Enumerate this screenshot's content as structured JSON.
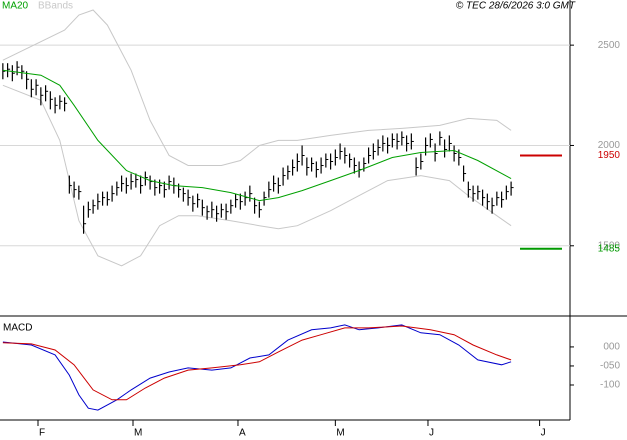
{
  "chart_data": [
    {
      "type": "ohlc",
      "copyright": "© TEC 28/6/2026 3:0 GMT",
      "xlim": [
        -0.6,
        119.4
      ],
      "ylim": [
        1155,
        2725
      ],
      "yticks": [
        1500,
        2000,
        2500
      ],
      "grid": true,
      "bar_color": "#000000",
      "high": [
        2410,
        2410,
        2400,
        2420,
        2400,
        2370,
        2330,
        2330,
        2290,
        2300,
        2270,
        2240,
        2250,
        2240,
        1850,
        1820,
        1800,
        1700,
        1720,
        1730,
        1760,
        1770,
        1770,
        1800,
        1820,
        1850,
        1840,
        1860,
        1860,
        1850,
        1870,
        1850,
        1830,
        1830,
        1820,
        1850,
        1840,
        1810,
        1790,
        1780,
        1750,
        1760,
        1730,
        1700,
        1720,
        1700,
        1710,
        1710,
        1730,
        1760,
        1760,
        1770,
        1800,
        1740,
        1720,
        1770,
        1820,
        1850,
        1840,
        1890,
        1900,
        1930,
        1960,
        2000,
        1940,
        1940,
        1920,
        1940,
        1960,
        1960,
        1980,
        2010,
        1990,
        1960,
        1940,
        1920,
        1940,
        1990,
        2010,
        2030,
        2050,
        2040,
        2060,
        2060,
        2070,
        2050,
        2060,
        1940,
        1960,
        2040,
        2060,
        2010,
        2070,
        2030,
        2050,
        2000,
        1980,
        1900,
        1820,
        1800,
        1800,
        1780,
        1760,
        1740,
        1770,
        1770,
        1800,
        1820
      ],
      "low": [
        2330,
        2340,
        2320,
        2350,
        2330,
        2280,
        2240,
        2250,
        2200,
        2220,
        2180,
        2160,
        2180,
        2170,
        1760,
        1740,
        1730,
        1560,
        1640,
        1660,
        1680,
        1700,
        1700,
        1720,
        1750,
        1770,
        1760,
        1780,
        1790,
        1760,
        1800,
        1780,
        1750,
        1760,
        1740,
        1780,
        1760,
        1740,
        1720,
        1700,
        1670,
        1690,
        1650,
        1630,
        1640,
        1620,
        1640,
        1630,
        1660,
        1690,
        1680,
        1700,
        1720,
        1660,
        1640,
        1700,
        1740,
        1770,
        1760,
        1800,
        1830,
        1850,
        1870,
        1900,
        1850,
        1870,
        1840,
        1860,
        1890,
        1880,
        1900,
        1930,
        1910,
        1890,
        1860,
        1840,
        1870,
        1910,
        1930,
        1950,
        1970,
        1960,
        1990,
        1980,
        2000,
        1970,
        1980,
        1850,
        1880,
        1950,
        1990,
        1920,
        2000,
        1940,
        1970,
        1920,
        1900,
        1820,
        1740,
        1720,
        1730,
        1700,
        1680,
        1660,
        1700,
        1690,
        1730,
        1750
      ],
      "close": [
        2370,
        2380,
        2360,
        2390,
        2370,
        2330,
        2280,
        2300,
        2250,
        2270,
        2230,
        2200,
        2220,
        2210,
        1800,
        1780,
        1770,
        1610,
        1680,
        1700,
        1720,
        1740,
        1730,
        1760,
        1790,
        1810,
        1800,
        1820,
        1830,
        1800,
        1840,
        1820,
        1790,
        1800,
        1780,
        1820,
        1800,
        1780,
        1760,
        1740,
        1710,
        1730,
        1690,
        1670,
        1680,
        1660,
        1680,
        1670,
        1700,
        1730,
        1720,
        1740,
        1760,
        1700,
        1680,
        1740,
        1780,
        1810,
        1800,
        1850,
        1870,
        1890,
        1920,
        1950,
        1890,
        1910,
        1880,
        1900,
        1930,
        1920,
        1940,
        1970,
        1950,
        1930,
        1900,
        1880,
        1910,
        1950,
        1970,
        1990,
        2010,
        2000,
        2030,
        2020,
        2040,
        2010,
        2020,
        1890,
        1920,
        2000,
        2030,
        1960,
        2040,
        1980,
        2010,
        1960,
        1940,
        1860,
        1780,
        1760,
        1770,
        1740,
        1720,
        1700,
        1740,
        1730,
        1770,
        1790
      ],
      "series": [
        {
          "name": "MA20",
          "color": "#00a000",
          "x": [
            0,
            8,
            12,
            15,
            20,
            26,
            31,
            36,
            42,
            48,
            54,
            58,
            63,
            69,
            75,
            82,
            88,
            95,
            100,
            107
          ],
          "values": [
            2375,
            2350,
            2300,
            2200,
            2025,
            1875,
            1825,
            1800,
            1790,
            1765,
            1725,
            1740,
            1775,
            1825,
            1875,
            1940,
            1965,
            1975,
            1925,
            1835
          ]
        }
      ],
      "bands": {
        "name": "BBands",
        "color": "#c8c8c8",
        "upper": {
          "x": [
            0,
            13,
            16,
            19,
            22,
            27,
            31,
            35,
            39,
            46,
            50,
            54,
            58,
            62,
            69,
            77,
            84,
            92,
            98,
            104,
            107
          ],
          "values": [
            2425,
            2575,
            2650,
            2675,
            2600,
            2375,
            2125,
            1950,
            1900,
            1900,
            1925,
            2000,
            2025,
            2025,
            2050,
            2075,
            2085,
            2100,
            2135,
            2125,
            2075
          ]
        },
        "lower": {
          "x": [
            0,
            8,
            12,
            16,
            20,
            25,
            29,
            33,
            37,
            41,
            48,
            54,
            58,
            62,
            69,
            75,
            81,
            88,
            94,
            98,
            104,
            107
          ],
          "values": [
            2300,
            2225,
            2025,
            1625,
            1450,
            1400,
            1450,
            1600,
            1650,
            1650,
            1625,
            1600,
            1585,
            1600,
            1675,
            1750,
            1825,
            1850,
            1825,
            1750,
            1650,
            1600
          ]
        }
      },
      "levels": [
        {
          "value": 1950,
          "label": "1950",
          "color": "#cc0000"
        },
        {
          "value": 1485,
          "label": "1485",
          "color": "#009900"
        }
      ]
    },
    {
      "type": "line",
      "title": "MACD",
      "xlim": [
        -0.6,
        119.4
      ],
      "ylim": [
        -192,
        76
      ],
      "yticks": [
        {
          "value": 0,
          "label": "000"
        },
        {
          "value": -50,
          "label": "-050"
        },
        {
          "value": -100,
          "label": "-100"
        }
      ],
      "xticks": [
        {
          "value": 7.4,
          "label": "F"
        },
        {
          "value": 27.4,
          "label": "M"
        },
        {
          "value": 49.5,
          "label": "A"
        },
        {
          "value": 70,
          "label": "M"
        },
        {
          "value": 89.5,
          "label": "J"
        },
        {
          "value": 113,
          "label": "J"
        }
      ],
      "series": [
        {
          "color": "#0000cc",
          "x": [
            0,
            6,
            11,
            14,
            16,
            18,
            20,
            24,
            27,
            31,
            35,
            39,
            44,
            48,
            52,
            56,
            60,
            65,
            69,
            72,
            75,
            79,
            84,
            88,
            92,
            96,
            100,
            105,
            107
          ],
          "values": [
            13,
            5,
            -21,
            -74,
            -126,
            -161,
            -166,
            -139,
            -113,
            -82,
            -66,
            -55,
            -61,
            -55,
            -29,
            -21,
            18,
            45,
            50,
            58,
            45,
            50,
            58,
            37,
            32,
            5,
            -34,
            -47,
            -39
          ]
        },
        {
          "color": "#cc0000",
          "x": [
            0,
            6,
            11,
            15,
            19,
            23,
            26,
            30,
            34,
            39,
            44,
            50,
            54,
            58,
            63,
            67,
            72,
            77,
            84,
            90,
            95,
            99,
            104,
            107
          ],
          "values": [
            11,
            8,
            -8,
            -47,
            -113,
            -139,
            -139,
            -108,
            -82,
            -61,
            -55,
            -47,
            -39,
            -13,
            18,
            32,
            50,
            50,
            55,
            45,
            32,
            5,
            -21,
            -34
          ]
        }
      ]
    }
  ]
}
